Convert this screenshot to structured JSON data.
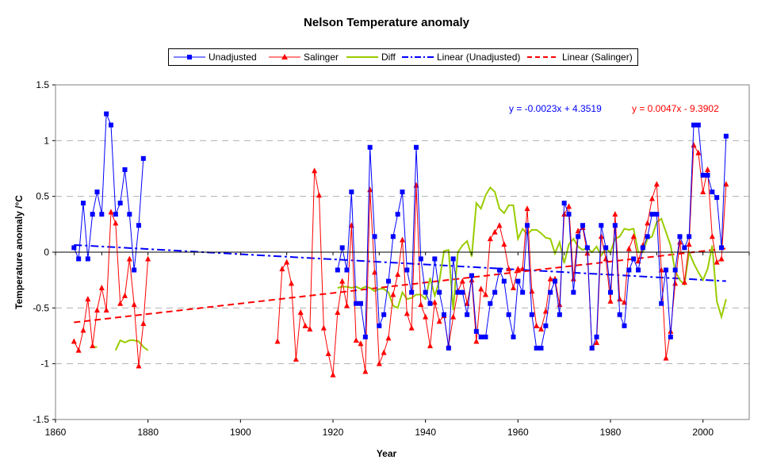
{
  "chart_data": {
    "type": "line",
    "title": "Nelson Temperature anomaly",
    "xlabel": "Year",
    "ylabel": "Temperature anomaly /°C",
    "xlim": [
      1860,
      2010
    ],
    "ylim": [
      -1.5,
      1.5
    ],
    "x_ticks": [
      "1860",
      "1880",
      "1900",
      "1920",
      "1940",
      "1960",
      "1980",
      "2000"
    ],
    "y_ticks": [
      "-1.5",
      "-1",
      "-0.5",
      "0",
      "0.5",
      "1",
      "1.5"
    ],
    "grid": "horizontal dashed",
    "legend_position": "top",
    "legend": [
      "Unadjusted",
      "Salinger",
      "Diff",
      "Linear (Unadjusted)",
      "Linear (Salinger)"
    ],
    "equations": {
      "unadjusted": "y = -0.0023x + 4.3519",
      "salinger": "y = 0.0047x - 9.3902"
    },
    "series": [
      {
        "name": "Unadjusted",
        "color": "#0000ff",
        "marker": "square",
        "x": [
          1864,
          1865,
          1866,
          1867,
          1868,
          1869,
          1870,
          1871,
          1872,
          1873,
          1874,
          1875,
          1876,
          1877,
          1878,
          1879,
          1880,
          1921,
          1922,
          1923,
          1924,
          1925,
          1926,
          1927,
          1928,
          1929,
          1930,
          1931,
          1932,
          1933,
          1934,
          1935,
          1936,
          1937,
          1938,
          1939,
          1940,
          1941,
          1942,
          1943,
          1944,
          1945,
          1946,
          1947,
          1948,
          1949,
          1950,
          1951,
          1952,
          1953,
          1954,
          1955,
          1956,
          1957,
          1958,
          1959,
          1960,
          1961,
          1962,
          1963,
          1964,
          1965,
          1966,
          1967,
          1968,
          1969,
          1970,
          1971,
          1972,
          1973,
          1974,
          1975,
          1976,
          1977,
          1978,
          1979,
          1980,
          1981,
          1982,
          1983,
          1984,
          1985,
          1986,
          1987,
          1988,
          1989,
          1990,
          1991,
          1992,
          1993,
          1994,
          1995,
          1996,
          1997,
          1998,
          1999,
          2000,
          2001,
          2002,
          2003,
          2004,
          2005
        ],
        "y": [
          0.04,
          -0.06,
          0.44,
          -0.06,
          0.34,
          0.54,
          0.34,
          1.24,
          1.14,
          0.34,
          0.44,
          0.74,
          0.34,
          -0.16,
          0.24,
          0.84,
          null,
          -0.16,
          0.04,
          -0.16,
          0.54,
          -0.46,
          -0.46,
          -0.76,
          0.94,
          0.14,
          -0.66,
          -0.56,
          -0.26,
          0.14,
          0.34,
          0.54,
          -0.16,
          -0.36,
          0.94,
          -0.06,
          -0.36,
          -0.46,
          -0.06,
          -0.36,
          -0.56,
          -0.86,
          -0.06,
          -0.36,
          -0.36,
          -0.56,
          -0.21,
          -0.71,
          -0.76,
          -0.76,
          -0.46,
          -0.36,
          -0.16,
          -0.26,
          -0.56,
          -0.76,
          -0.26,
          -0.36,
          0.24,
          -0.56,
          -0.86,
          -0.86,
          -0.66,
          -0.36,
          -0.26,
          -0.56,
          0.44,
          0.34,
          -0.36,
          0.14,
          0.24,
          0.04,
          -0.86,
          -0.76,
          0.24,
          0.04,
          -0.36,
          0.24,
          -0.56,
          -0.66,
          -0.16,
          -0.06,
          -0.16,
          0.04,
          0.14,
          0.34,
          0.34,
          -0.46,
          -0.16,
          -0.76,
          -0.16,
          0.14,
          0.04,
          0.14,
          1.14,
          1.14,
          0.69,
          0.69,
          0.54,
          0.49,
          0.04,
          1.04
        ]
      },
      {
        "name": "Salinger",
        "color": "#ff0000",
        "marker": "triangle",
        "x": [
          1864,
          1865,
          1866,
          1867,
          1868,
          1869,
          1870,
          1871,
          1872,
          1873,
          1874,
          1875,
          1876,
          1877,
          1878,
          1879,
          1880,
          1908,
          1909,
          1910,
          1911,
          1912,
          1913,
          1914,
          1915,
          1916,
          1917,
          1918,
          1919,
          1920,
          1921,
          1922,
          1923,
          1924,
          1925,
          1926,
          1927,
          1928,
          1929,
          1930,
          1931,
          1932,
          1933,
          1934,
          1935,
          1936,
          1937,
          1938,
          1939,
          1940,
          1941,
          1942,
          1943,
          1944,
          1945,
          1946,
          1947,
          1948,
          1949,
          1950,
          1951,
          1952,
          1953,
          1954,
          1955,
          1956,
          1957,
          1958,
          1959,
          1960,
          1961,
          1962,
          1963,
          1964,
          1965,
          1966,
          1967,
          1968,
          1969,
          1970,
          1971,
          1972,
          1973,
          1974,
          1975,
          1976,
          1977,
          1978,
          1979,
          1980,
          1981,
          1982,
          1983,
          1984,
          1985,
          1986,
          1987,
          1988,
          1989,
          1990,
          1991,
          1992,
          1993,
          1994,
          1995,
          1996,
          1997,
          1998,
          1999,
          2000,
          2001,
          2002,
          2003,
          2004,
          2005
        ],
        "y": [
          -0.8,
          -0.88,
          -0.7,
          -0.42,
          -0.84,
          -0.52,
          -0.32,
          -0.52,
          0.36,
          0.26,
          -0.46,
          -0.39,
          -0.06,
          -0.47,
          -1.02,
          -0.64,
          -0.06,
          -0.8,
          -0.15,
          -0.09,
          -0.28,
          -0.96,
          -0.54,
          -0.66,
          -0.69,
          0.73,
          0.51,
          -0.68,
          -0.91,
          -1.1,
          -0.54,
          -0.26,
          -0.48,
          0.24,
          -0.79,
          -0.82,
          -1.07,
          0.56,
          -0.18,
          -1.0,
          -0.9,
          -0.77,
          -0.38,
          -0.2,
          0.11,
          -0.55,
          -0.68,
          0.6,
          -0.47,
          -0.58,
          -0.84,
          -0.45,
          -0.62,
          -0.57,
          -0.84,
          -0.58,
          -0.35,
          -0.26,
          -0.46,
          -0.25,
          -0.8,
          -0.33,
          -0.38,
          0.12,
          0.18,
          0.24,
          0.07,
          -0.15,
          -0.32,
          -0.15,
          -0.15,
          0.39,
          -0.35,
          -0.66,
          -0.69,
          -0.53,
          -0.24,
          -0.24,
          -0.47,
          0.34,
          0.41,
          -0.24,
          0.19,
          0.22,
          -0.01,
          -0.86,
          -0.81,
          0.14,
          -0.06,
          -0.44,
          0.34,
          -0.42,
          -0.45,
          0.03,
          0.14,
          -0.08,
          0.06,
          0.26,
          0.48,
          0.61,
          -0.16,
          -0.95,
          -0.71,
          -0.28,
          0.09,
          -0.27,
          0.07,
          0.96,
          0.89,
          0.54,
          0.74,
          0.14,
          -0.09,
          -0.06,
          0.61
        ]
      },
      {
        "name": "Diff",
        "color": "#99cc00",
        "marker": "none",
        "x": [
          1868,
          1869,
          1873,
          1874,
          1875,
          1876,
          1877,
          1878,
          1879,
          1880,
          1921,
          1922,
          1923,
          1924,
          1925,
          1926,
          1927,
          1928,
          1929,
          1930,
          1931,
          1932,
          1933,
          1934,
          1935,
          1936,
          1937,
          1938,
          1939,
          1940,
          1941,
          1942,
          1943,
          1944,
          1945,
          1946,
          1947,
          1948,
          1949,
          1950,
          1951,
          1952,
          1953,
          1954,
          1955,
          1956,
          1957,
          1958,
          1959,
          1960,
          1961,
          1962,
          1963,
          1964,
          1965,
          1966,
          1967,
          1968,
          1969,
          1970,
          1971,
          1972,
          1973,
          1974,
          1975,
          1976,
          1977,
          1978,
          1979,
          1980,
          1981,
          1982,
          1983,
          1984,
          1985,
          1986,
          1987,
          1988,
          1989,
          1990,
          1991,
          1993,
          1994,
          1995,
          1996,
          1997,
          1998,
          1999,
          2000,
          2001,
          2002,
          2003,
          2004,
          2005
        ],
        "y": [
          -0.85,
          -0.85,
          -0.88,
          -0.79,
          -0.81,
          -0.79,
          -0.79,
          -0.8,
          -0.85,
          -0.88,
          -0.32,
          -0.31,
          -0.31,
          -0.32,
          -0.31,
          -0.33,
          -0.31,
          -0.32,
          -0.35,
          -0.33,
          -0.33,
          -0.36,
          -0.48,
          -0.5,
          -0.36,
          -0.42,
          -0.41,
          -0.38,
          -0.38,
          -0.42,
          -0.23,
          -0.39,
          -0.26,
          0.01,
          0.02,
          -0.52,
          0.0,
          0.06,
          0.1,
          -0.04,
          0.44,
          0.39,
          0.51,
          0.58,
          0.54,
          0.39,
          0.35,
          0.42,
          0.42,
          0.12,
          0.21,
          0.16,
          0.2,
          0.2,
          0.17,
          0.13,
          0.12,
          -0.01,
          0.09,
          -0.1,
          0.07,
          0.12,
          0.05,
          0.02,
          0.04,
          0.0,
          0.05,
          -0.03,
          0.03,
          0.0,
          0.12,
          0.14,
          0.21,
          0.2,
          0.21,
          0.0,
          0.0,
          0.12,
          0.14,
          0.27,
          0.3,
          0.06,
          -0.17,
          -0.25,
          -0.29,
          0.0,
          -0.1,
          -0.18,
          -0.25,
          -0.15,
          0.06,
          -0.44,
          -0.58,
          -0.42
        ]
      }
    ],
    "trendlines": [
      {
        "name": "Linear (Unadjusted)",
        "color": "#0000ff",
        "style": "dash-dot",
        "slope": -0.0023,
        "intercept": 4.3519,
        "x_range": [
          1864,
          2005
        ]
      },
      {
        "name": "Linear (Salinger)",
        "color": "#ff0000",
        "style": "dash",
        "slope": 0.0047,
        "intercept": -9.3902,
        "x_range": [
          1864,
          2005
        ]
      }
    ]
  }
}
